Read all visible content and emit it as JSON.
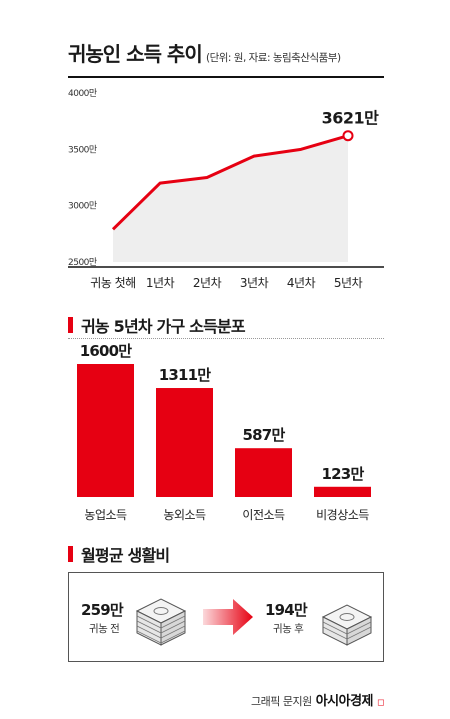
{
  "header": {
    "title": "귀농인 소득 추이",
    "subtitle": "(단위: 원, 자료: 농림축산식품부)"
  },
  "colors": {
    "accent": "#e60012",
    "area": "#eeeeee",
    "bar": "#e60012"
  },
  "chart_data": [
    {
      "type": "area",
      "title": "귀농인 소득 추이",
      "categories": [
        "귀농 첫해",
        "1년차",
        "2년차",
        "3년차",
        "4년차",
        "5년차"
      ],
      "values": [
        2790,
        3200,
        3250,
        3440,
        3500,
        3621
      ],
      "y_ticks": [
        "4000만",
        "3500만",
        "3000만",
        "2500만"
      ],
      "ylim": [
        2500,
        4000
      ],
      "highlight_label": "3621만",
      "grid": false
    },
    {
      "type": "bar",
      "title": "귀농 5년차 가구 소득분포",
      "categories": [
        "농업소득",
        "농외소득",
        "이전소득",
        "비경상소득"
      ],
      "values": [
        1600,
        1311,
        587,
        123
      ],
      "value_labels": [
        "1600만",
        "1311만",
        "587만",
        "123만"
      ]
    }
  ],
  "spending": {
    "title": "월평균 생활비",
    "before": {
      "value": "259만",
      "label": "귀농 전"
    },
    "after": {
      "value": "194만",
      "label": "귀농 후"
    }
  },
  "credit": {
    "text": "그래픽 문지원",
    "brand": "아시아경제"
  }
}
